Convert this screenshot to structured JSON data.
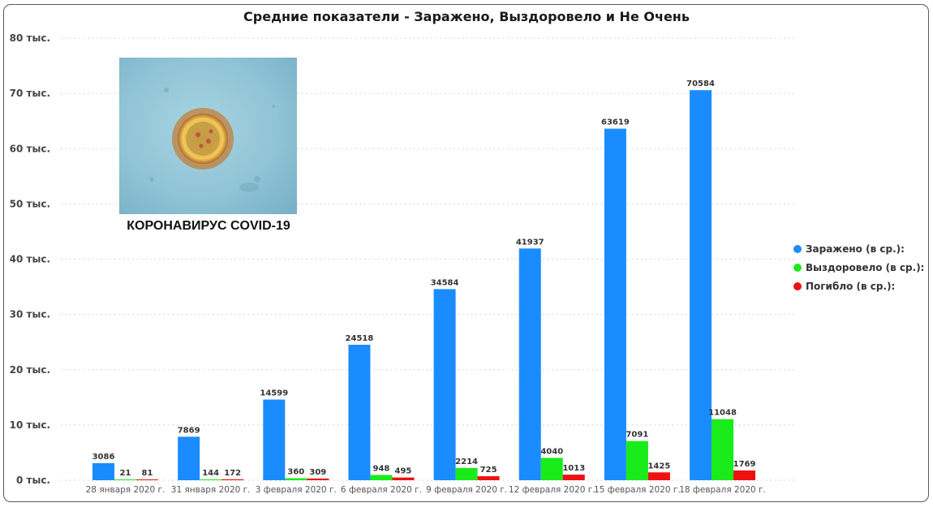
{
  "colors": {
    "infected": "#1a8cff",
    "recovered": "#1aeb1a",
    "died": "#ee1111",
    "grid": "#c8c8c8",
    "text": "#333333"
  },
  "image_panel": {
    "caption": "КОРОНАВИРУС COVID-19",
    "depicts": "virus-microscope-image"
  },
  "chart_data": {
    "type": "bar",
    "title": "Средние показатели - Заражено, Выздоровело и Не Очень",
    "xlabel": "",
    "ylabel": "",
    "ylim": [
      0,
      80000
    ],
    "yticks": [
      0,
      10000,
      20000,
      30000,
      40000,
      50000,
      60000,
      70000,
      80000
    ],
    "ytick_labels": [
      "0 тыс.",
      "10 тыс.",
      "20 тыс.",
      "30 тыс.",
      "40 тыс.",
      "50 тыс.",
      "60 тыс.",
      "70 тыс.",
      "80 тыс."
    ],
    "grid": true,
    "legend_position": "right",
    "categories": [
      "28 января 2020 г.",
      "31 января 2020 г.",
      "3 февраля 2020 г.",
      "6 февраля 2020 г.",
      "9 февраля 2020 г.",
      "12 февраля 2020 г.",
      "15 февраля 2020 г.",
      "18 февраля 2020 г."
    ],
    "series": [
      {
        "name": "Заражено (в ср.):",
        "color": "#1a8cff",
        "values": [
          3086,
          7869,
          14599,
          24518,
          34584,
          41937,
          63619,
          70584
        ]
      },
      {
        "name": "Выздоровело (в ср.):",
        "color": "#1aeb1a",
        "values": [
          21,
          144,
          360,
          948,
          2214,
          4040,
          7091,
          11048
        ]
      },
      {
        "name": "Погибло (в ср.):",
        "color": "#ee1111",
        "values": [
          81,
          172,
          309,
          495,
          725,
          1013,
          1425,
          1769
        ]
      }
    ]
  }
}
